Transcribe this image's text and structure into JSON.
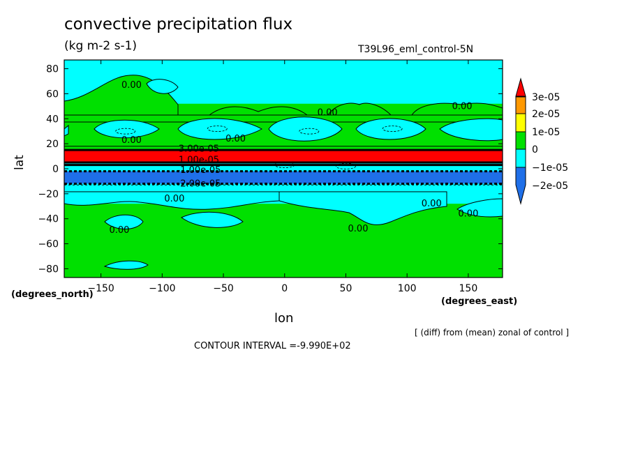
{
  "title": "convective precipitation flux",
  "units": "(kg m-2 s-1)",
  "run_label": "T39L96_eml_control-5N",
  "ylabel": "lat",
  "xlabel": "lon",
  "ynote": "(degrees_north)",
  "xnote": "(degrees_east)",
  "diff_note": "[ (diff) from (mean) zonal of control ]",
  "contour_note": "CONTOUR INTERVAL =-9.990E+02",
  "colors": {
    "c_minus2e5": "#1f6fe8",
    "c_minus1e5": "#00ffff",
    "c_0": "#00e000",
    "c_1e5": "#ffff00",
    "c_2e5": "#ff9900",
    "c_3e5": "#ff0000"
  },
  "chart_data": {
    "type": "heatmap",
    "title": "convective precipitation flux",
    "subtitle": "(kg m-2 s-1)",
    "xlabel": "lon",
    "ylabel": "lat",
    "xlim": [
      -180,
      178
    ],
    "ylim": [
      -87,
      87
    ],
    "x_ticks": [
      -150,
      -100,
      -50,
      0,
      50,
      100,
      150
    ],
    "y_ticks": [
      80,
      60,
      40,
      20,
      0,
      -20,
      -40,
      -60,
      -80
    ],
    "colorbar": {
      "labels": [
        "3e-05",
        "2e-05",
        "1e-05",
        "0",
        "−1e-05",
        "−2e-05"
      ],
      "levels": [
        -2e-05,
        -1e-05,
        0,
        1e-05,
        2e-05,
        3e-05
      ]
    },
    "zonal_bands": [
      {
        "lat_from": 87,
        "lat_to": 52,
        "level": "c_minus1e5"
      },
      {
        "lat_from": 18,
        "lat_to": 15,
        "level": "c_0"
      },
      {
        "lat_from": 15,
        "lat_to": 5,
        "level": "c_3e5"
      },
      {
        "lat_from": 5,
        "lat_to": 3,
        "level": "c_minus1e5"
      },
      {
        "lat_from": 3,
        "lat_to": -2,
        "level": "c_minus1e5"
      },
      {
        "lat_from": -2,
        "lat_to": -12,
        "level": "c_minus2e5"
      },
      {
        "lat_from": -12,
        "lat_to": -28,
        "level": "c_minus1e5"
      }
    ],
    "contour_labels": [
      {
        "lon": -125,
        "lat": 67,
        "text": "0.00"
      },
      {
        "lon": -125,
        "lat": 23,
        "text": "0.00"
      },
      {
        "lon": -40,
        "lat": 24,
        "text": "0.00"
      },
      {
        "lon": 35,
        "lat": 45,
        "text": "0.00"
      },
      {
        "lon": 145,
        "lat": 50,
        "text": "0.00"
      },
      {
        "lon": -90,
        "lat": -24,
        "text": "0.00"
      },
      {
        "lon": 120,
        "lat": -28,
        "text": "0.00"
      },
      {
        "lon": 150,
        "lat": -36,
        "text": "0.00"
      },
      {
        "lon": 60,
        "lat": -48,
        "text": "0.00"
      },
      {
        "lon": -135,
        "lat": -49,
        "text": "0.00"
      },
      {
        "lon": -70,
        "lat": 16,
        "text": "3.00e-05"
      },
      {
        "lon": -70,
        "lat": 7,
        "text": "1.00e-05"
      },
      {
        "lon": -70,
        "lat": -1,
        "text": "-1.00e-05"
      },
      {
        "lon": -70,
        "lat": -12,
        "text": "-2.00e-05"
      }
    ]
  }
}
